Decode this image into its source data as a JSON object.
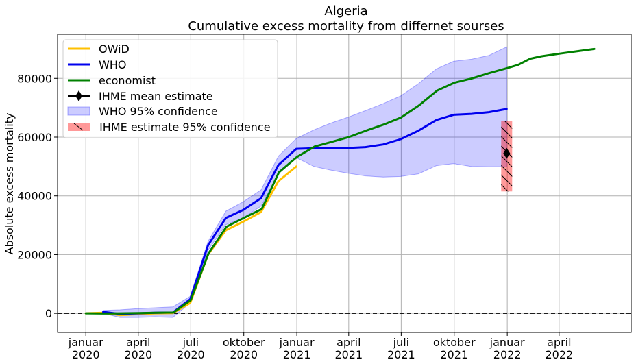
{
  "chart_data": {
    "type": "line",
    "title": "Algeria",
    "subtitle": "Cumulative excess mortality from differnet sourses",
    "xlabel": "",
    "ylabel": "Absolute excess mortality",
    "xlim": [
      "2019-11-13",
      "2022-08-04"
    ],
    "ylim": [
      -6500,
      95000
    ],
    "grid": true,
    "legend_position": "top-left",
    "x_ticks": [
      {
        "date": "2020-01-01",
        "line1": "januar",
        "line2": "2020"
      },
      {
        "date": "2020-04-01",
        "line1": "april",
        "line2": "2020"
      },
      {
        "date": "2020-07-01",
        "line1": "juli",
        "line2": "2020"
      },
      {
        "date": "2020-10-01",
        "line1": "oktober",
        "line2": "2020"
      },
      {
        "date": "2021-01-01",
        "line1": "januar",
        "line2": "2021"
      },
      {
        "date": "2021-04-01",
        "line1": "april",
        "line2": "2021"
      },
      {
        "date": "2021-07-01",
        "line1": "juli",
        "line2": "2021"
      },
      {
        "date": "2021-10-01",
        "line1": "oktober",
        "line2": "2021"
      },
      {
        "date": "2022-01-01",
        "line1": "januar",
        "line2": "2022"
      },
      {
        "date": "2022-04-01",
        "line1": "april",
        "line2": "2022"
      }
    ],
    "y_ticks": [
      0,
      20000,
      40000,
      60000,
      80000
    ],
    "zero_line": {
      "y": 0,
      "style": "dashed",
      "color": "#000000"
    },
    "series": [
      {
        "name": "OWiD",
        "color": "#FFC000",
        "points": [
          [
            "2020-01-01",
            0
          ],
          [
            "2020-01-31",
            200
          ],
          [
            "2020-02-29",
            -600
          ],
          [
            "2020-03-31",
            -300
          ],
          [
            "2020-04-30",
            0
          ],
          [
            "2020-05-31",
            100
          ],
          [
            "2020-06-30",
            3500
          ],
          [
            "2020-07-31",
            20000
          ],
          [
            "2020-08-31",
            28300
          ],
          [
            "2020-09-30",
            31200
          ],
          [
            "2020-10-31",
            34500
          ],
          [
            "2020-11-30",
            45000
          ],
          [
            "2020-12-31",
            50000
          ]
        ]
      },
      {
        "name": "WHO",
        "color": "#0000EE",
        "points": [
          [
            "2020-01-31",
            500
          ],
          [
            "2020-02-29",
            -200
          ],
          [
            "2020-03-31",
            0
          ],
          [
            "2020-04-30",
            200
          ],
          [
            "2020-05-31",
            300
          ],
          [
            "2020-06-30",
            4800
          ],
          [
            "2020-07-31",
            23200
          ],
          [
            "2020-08-31",
            32500
          ],
          [
            "2020-09-30",
            35200
          ],
          [
            "2020-10-31",
            39200
          ],
          [
            "2020-11-30",
            50500
          ],
          [
            "2020-12-31",
            56000
          ],
          [
            "2021-01-31",
            56200
          ],
          [
            "2021-02-28",
            56200
          ],
          [
            "2021-03-31",
            56300
          ],
          [
            "2021-04-30",
            56600
          ],
          [
            "2021-05-31",
            57500
          ],
          [
            "2021-06-30",
            59300
          ],
          [
            "2021-07-31",
            62200
          ],
          [
            "2021-08-31",
            65800
          ],
          [
            "2021-09-30",
            67600
          ],
          [
            "2021-10-31",
            67900
          ],
          [
            "2021-11-30",
            68500
          ],
          [
            "2021-12-31",
            69600
          ]
        ]
      },
      {
        "name": "economist",
        "color": "#008000",
        "points": [
          [
            "2020-01-01",
            0
          ],
          [
            "2020-02-01",
            -50
          ],
          [
            "2020-03-01",
            0
          ],
          [
            "2020-04-01",
            100
          ],
          [
            "2020-05-01",
            200
          ],
          [
            "2020-06-01",
            300
          ],
          [
            "2020-07-01",
            4500
          ],
          [
            "2020-08-01",
            20500
          ],
          [
            "2020-09-01",
            29500
          ],
          [
            "2020-10-01",
            32500
          ],
          [
            "2020-11-01",
            35500
          ],
          [
            "2020-12-01",
            48000
          ],
          [
            "2021-01-01",
            53200
          ],
          [
            "2021-02-01",
            56800
          ],
          [
            "2021-03-01",
            58300
          ],
          [
            "2021-04-01",
            60000
          ],
          [
            "2021-05-01",
            62200
          ],
          [
            "2021-06-01",
            64300
          ],
          [
            "2021-07-01",
            66700
          ],
          [
            "2021-08-01",
            70800
          ],
          [
            "2021-09-01",
            75800
          ],
          [
            "2021-10-01",
            78500
          ],
          [
            "2021-11-01",
            80000
          ],
          [
            "2021-12-01",
            81800
          ],
          [
            "2022-01-01",
            83500
          ],
          [
            "2022-01-20",
            84600
          ],
          [
            "2022-02-10",
            86700
          ],
          [
            "2022-03-01",
            87500
          ],
          [
            "2022-04-01",
            88400
          ],
          [
            "2022-05-01",
            89200
          ],
          [
            "2022-06-01",
            90000
          ]
        ]
      }
    ],
    "band": {
      "name": "WHO 95% confidence",
      "color": "#0000FF",
      "opacity": 0.2,
      "x": [
        "2020-01-31",
        "2020-02-29",
        "2020-03-31",
        "2020-04-30",
        "2020-05-31",
        "2020-06-30",
        "2020-07-31",
        "2020-08-31",
        "2020-09-30",
        "2020-10-31",
        "2020-11-30",
        "2020-12-31",
        "2021-01-31",
        "2021-02-28",
        "2021-03-31",
        "2021-04-30",
        "2021-05-31",
        "2021-06-30",
        "2021-07-31",
        "2021-08-31",
        "2021-09-30",
        "2021-10-31",
        "2021-11-30",
        "2021-12-31"
      ],
      "upper": [
        1000,
        1200,
        1600,
        1900,
        2200,
        5800,
        24500,
        34800,
        38000,
        42000,
        53500,
        59500,
        62500,
        64700,
        66800,
        69000,
        71400,
        74000,
        78200,
        83200,
        85800,
        86500,
        87800,
        90700
      ],
      "lower": [
        0,
        -1400,
        -1400,
        -1200,
        -1400,
        3500,
        21500,
        30200,
        32500,
        36500,
        47500,
        53000,
        50000,
        48800,
        47700,
        46800,
        46400,
        46600,
        47500,
        50300,
        51000,
        50000,
        49900,
        49900
      ]
    },
    "ihme": {
      "mean_label": "IHME mean estimate",
      "ci_label": " IHME estimate 95% confidence",
      "x": "2021-12-31",
      "mean": 54500,
      "lower": 41500,
      "upper": 65600,
      "color": "#FF0000",
      "marker_color": "#000000"
    }
  }
}
